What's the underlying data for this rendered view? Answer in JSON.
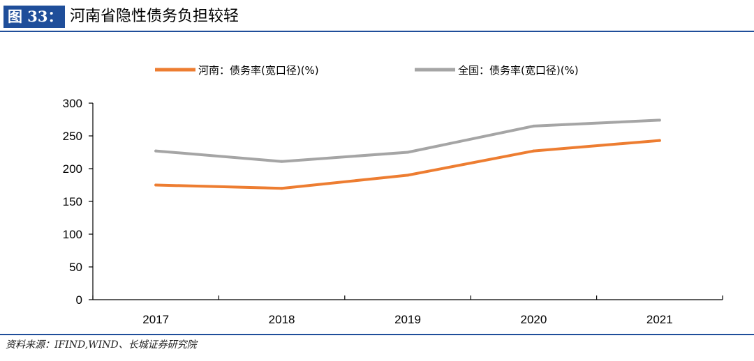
{
  "header": {
    "figure_label": "图 33：",
    "title": "河南省隐性债务负担较轻"
  },
  "footer": {
    "source": "资料来源：IFIND,WIND、长城证券研究院"
  },
  "colors": {
    "accent": "#1f4e9a",
    "henan": "#ed7d31",
    "national": "#a5a5a5"
  },
  "chart_data": {
    "type": "line",
    "categories": [
      "2017",
      "2018",
      "2019",
      "2020",
      "2021"
    ],
    "series": [
      {
        "name": "河南：债务率(宽口径)(%)",
        "color": "#ed7d31",
        "values": [
          175,
          170,
          190,
          227,
          243
        ]
      },
      {
        "name": "全国：债务率(宽口径)(%)",
        "color": "#a5a5a5",
        "values": [
          227,
          211,
          225,
          265,
          274
        ]
      }
    ],
    "yticks": [
      0,
      50,
      100,
      150,
      200,
      250,
      300
    ],
    "ylim": [
      0,
      300
    ],
    "xlabel": "",
    "ylabel": "",
    "grid": false,
    "legend_position": "top"
  }
}
